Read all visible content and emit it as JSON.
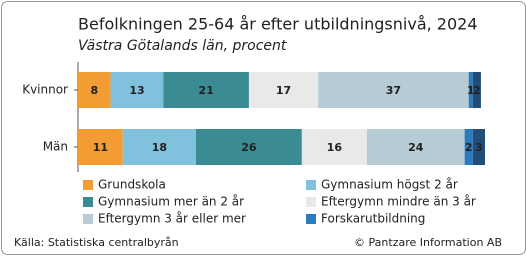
{
  "chart_data": {
    "type": "stacked-bar-horizontal",
    "title": "Befolkningen 25-64 år efter utbildningsnivå, 2024",
    "subtitle": "Västra Götalands län, procent",
    "categories": [
      "Kvinnor",
      "Män"
    ],
    "series": [
      {
        "name": "Grundskola",
        "color": "#f39c34",
        "values": [
          8,
          11
        ]
      },
      {
        "name": "Gymnasium högst 2 år",
        "color": "#80c2de",
        "values": [
          13,
          18
        ]
      },
      {
        "name": "Gymnasium mer än 2 år",
        "color": "#3a8b93",
        "values": [
          21,
          26
        ]
      },
      {
        "name": "Eftergymn mindre än 3 år",
        "color": "#e9e9e9",
        "values": [
          17,
          16
        ]
      },
      {
        "name": "Eftergymn 3 år eller mer",
        "color": "#b6cbd4",
        "values": [
          37,
          24
        ]
      },
      {
        "name": "Forskarutbildning",
        "color": "#2a7bc0",
        "values": [
          1,
          2
        ]
      },
      {
        "color": "#1f4e79",
        "values": [
          2,
          3
        ]
      }
    ],
    "xlim": [
      0,
      100
    ],
    "source": "Källa: Statistiska centralbyrån",
    "credit": "© Pantzare Information AB"
  }
}
